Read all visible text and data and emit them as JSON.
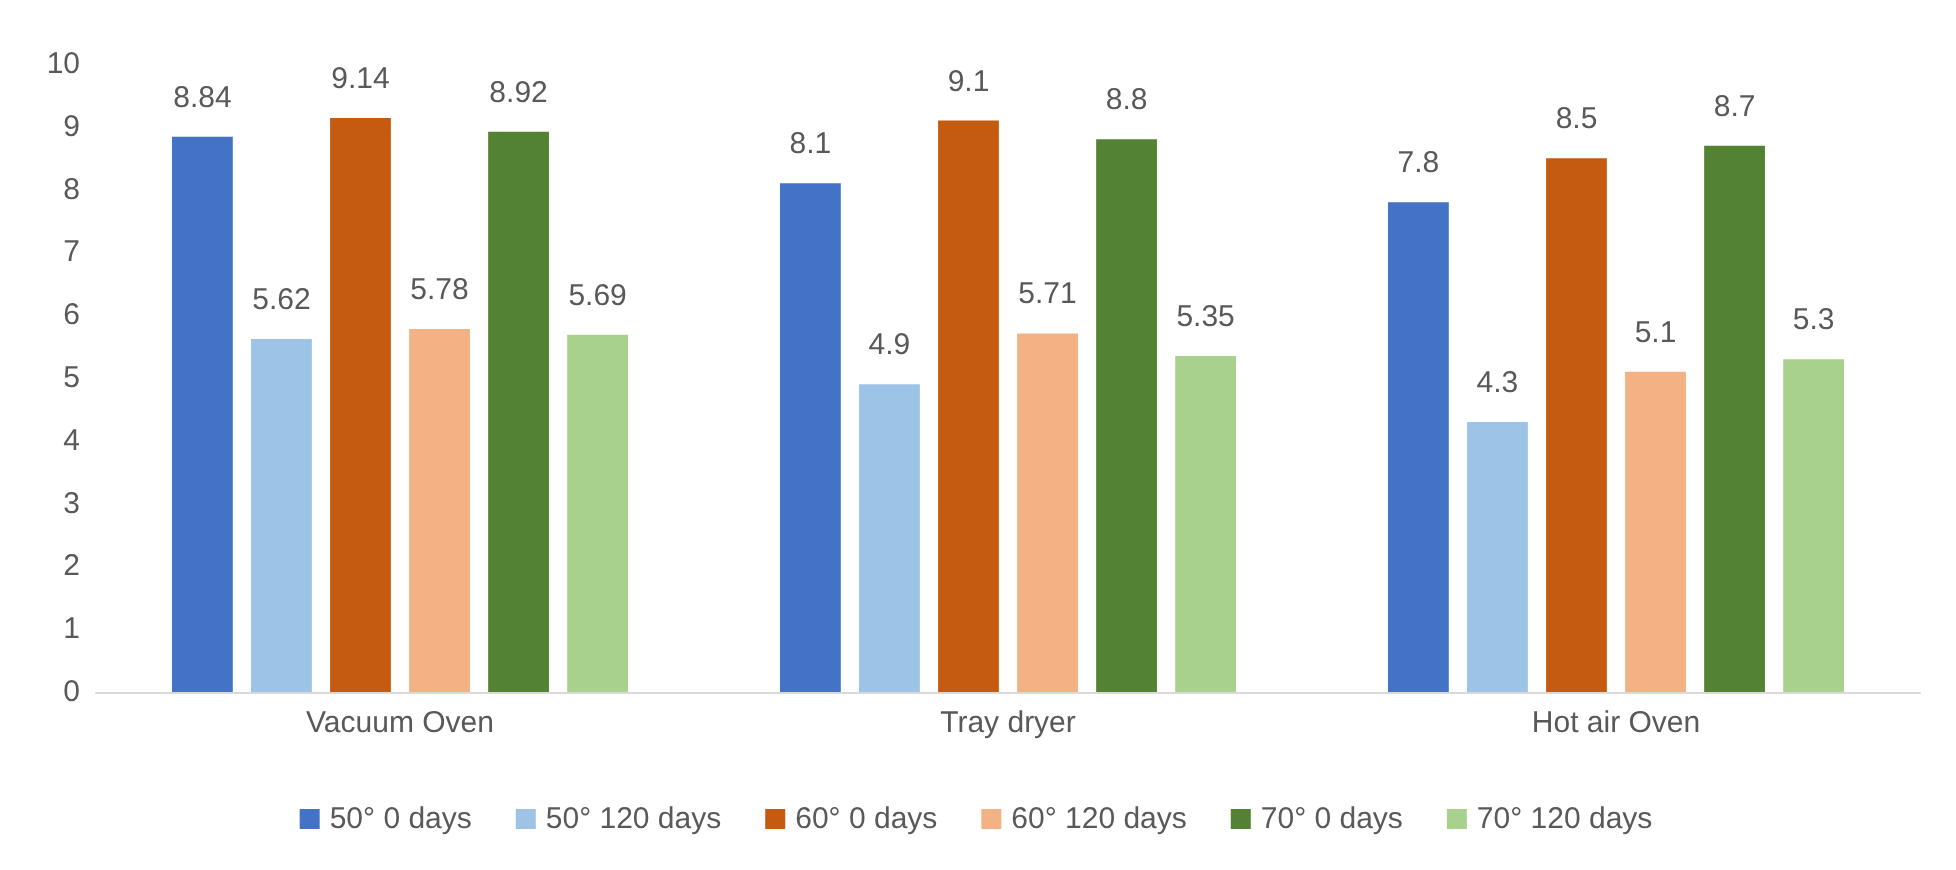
{
  "chart_data": {
    "type": "bar",
    "categories": [
      "Vacuum Oven",
      "Tray dryer",
      "Hot air Oven"
    ],
    "series": [
      {
        "name": "50° 0 days",
        "color": "#4472c4",
        "values": [
          8.84,
          8.1,
          7.8
        ]
      },
      {
        "name": "50° 120 days",
        "color": "#9dc3e6",
        "values": [
          5.62,
          4.9,
          4.3
        ]
      },
      {
        "name": "60° 0 days",
        "color": "#c55a11",
        "values": [
          9.14,
          9.1,
          8.5
        ]
      },
      {
        "name": "60° 120 days",
        "color": "#f4b183",
        "values": [
          5.78,
          5.71,
          5.1
        ]
      },
      {
        "name": "70° 0 days",
        "color": "#548235",
        "values": [
          8.92,
          8.8,
          8.7
        ]
      },
      {
        "name": "70° 120 days",
        "color": "#a9d18e",
        "values": [
          5.69,
          5.35,
          5.3
        ]
      }
    ],
    "ylim": [
      0,
      10
    ],
    "yticks": [
      0,
      1,
      2,
      3,
      4,
      5,
      6,
      7,
      8,
      9,
      10
    ],
    "grid": false,
    "legend": "bottom",
    "data_labels": true
  }
}
